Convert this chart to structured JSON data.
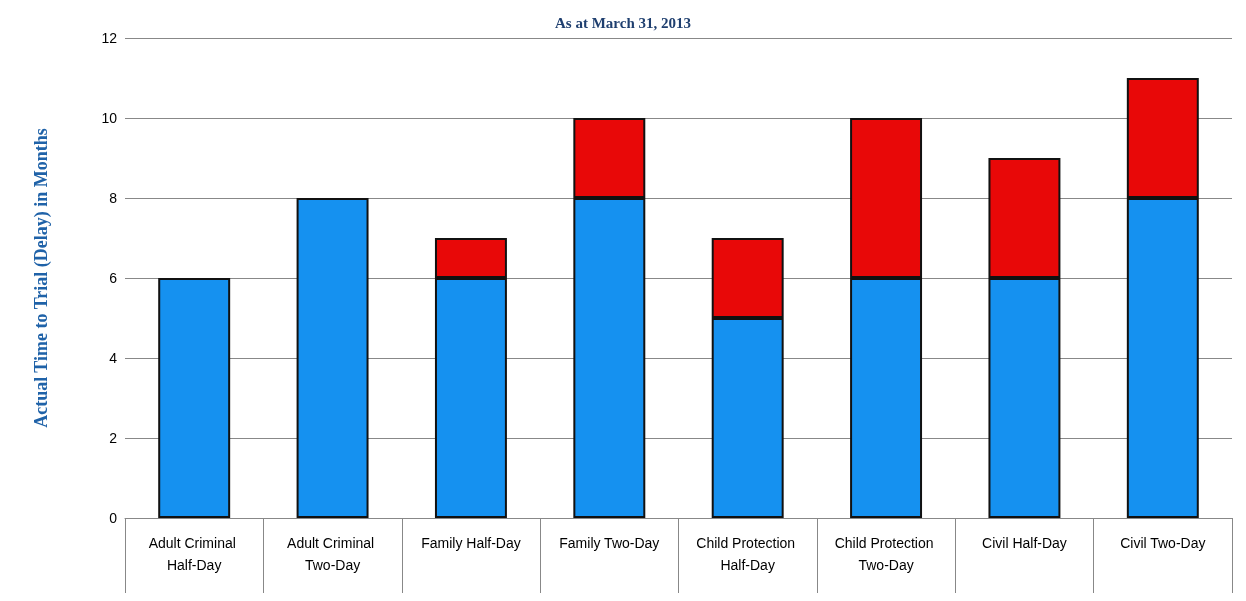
{
  "chart_data": {
    "type": "bar",
    "title": "As at March 31, 2013",
    "ylabel": "Actual Time to Trial (Delay) in Months",
    "categories": [
      "Adult Criminal Half-Day",
      "Adult Criminal Two-Day",
      "Family Half-Day",
      "Family Two-Day",
      "Child Protection Half-Day",
      "Child Protection Two-Day",
      "Civil Half-Day",
      "Civil Two-Day"
    ],
    "stacked": true,
    "series": [
      {
        "color": "#1591f0",
        "values": [
          6,
          8,
          6,
          8,
          5,
          6,
          6,
          8
        ]
      },
      {
        "color": "#e80808",
        "values": [
          null,
          null,
          1,
          2,
          2,
          4,
          3,
          3
        ]
      }
    ],
    "ylim": [
      0,
      12
    ],
    "yticks": [
      0,
      2,
      4,
      6,
      8,
      10,
      12
    ],
    "grid": "y"
  }
}
